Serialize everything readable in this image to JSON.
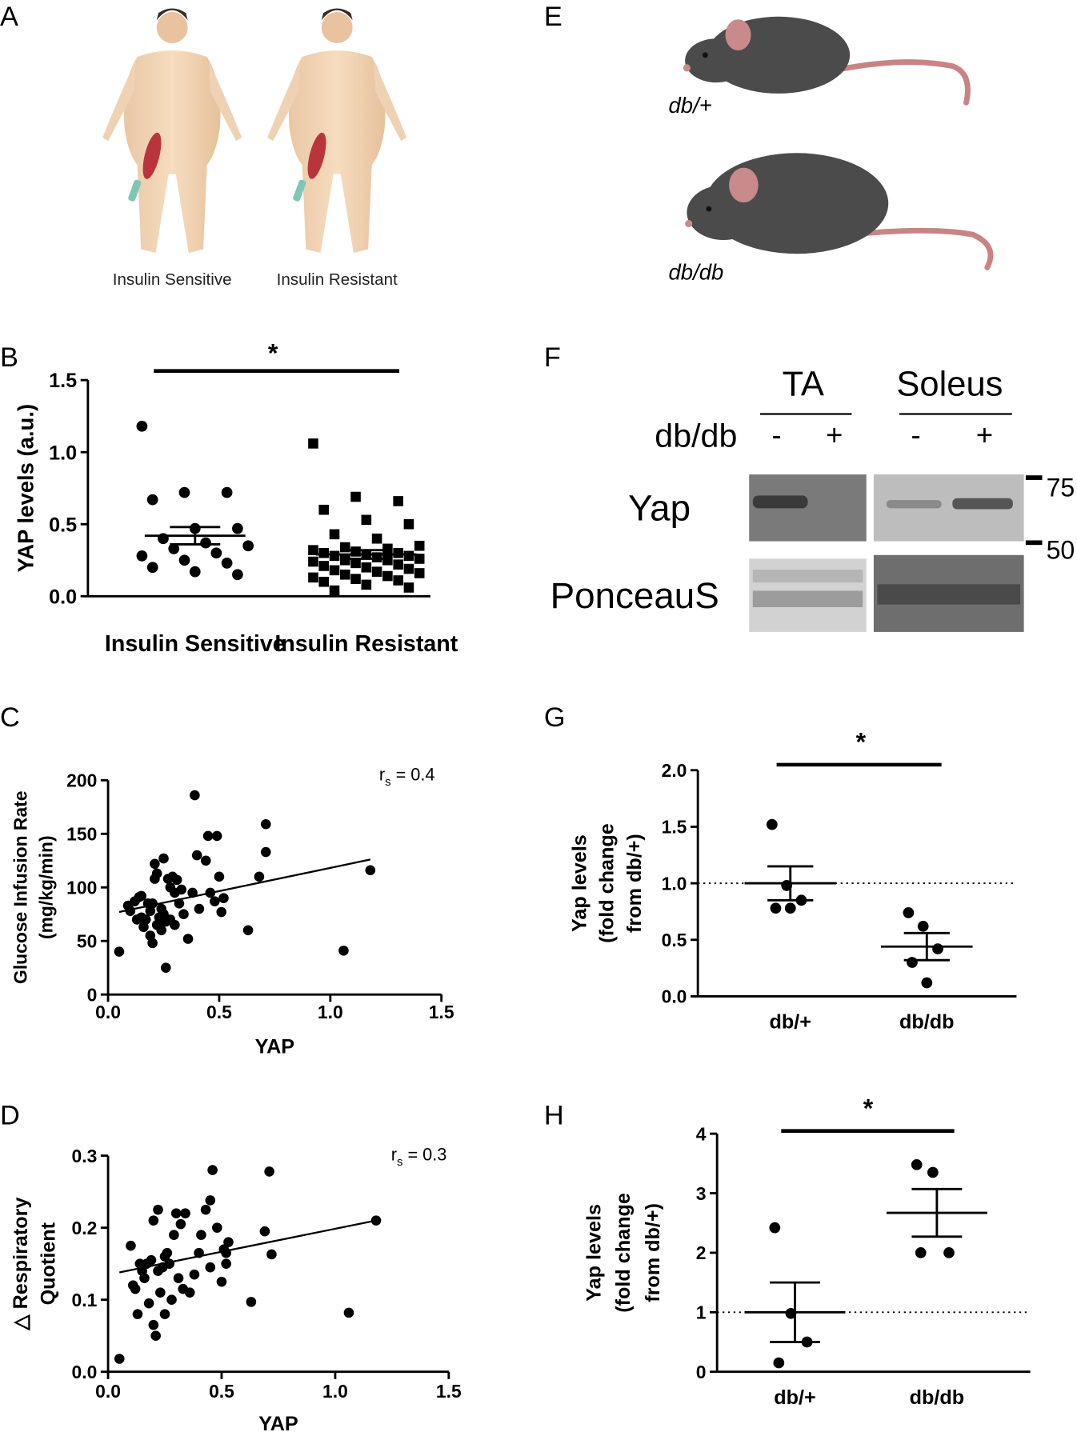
{
  "panel_labels": [
    "A",
    "B",
    "C",
    "D",
    "E",
    "F",
    "G",
    "H"
  ],
  "illustrations": {
    "A": {
      "labels": [
        "Insulin Sensitive",
        "Insulin Resistant"
      ]
    },
    "E": {
      "labels": [
        "db/+",
        "db/db"
      ]
    },
    "F": {
      "tissues": [
        "TA",
        "Soleus"
      ],
      "genotype_label": "db/db",
      "lanes": [
        "-",
        "+",
        "-",
        "+"
      ],
      "rows": [
        "Yap",
        "PonceauS"
      ],
      "markers": [
        75,
        50
      ]
    }
  },
  "chart_data": [
    {
      "type": "strip",
      "ylabel": [
        "YAP levels (a.u.)"
      ],
      "categories": [
        "Insulin Sensitive",
        "Insulin Resistant"
      ],
      "markers": [
        "circle",
        "square"
      ],
      "values": [
        [
          1.18,
          0.72,
          0.72,
          0.67,
          0.47,
          0.47,
          0.4,
          0.37,
          0.35,
          0.33,
          0.3,
          0.28,
          0.25,
          0.23,
          0.2,
          0.17,
          0.15
        ],
        [
          1.06,
          0.69,
          0.66,
          0.6,
          0.53,
          0.5,
          0.43,
          0.4,
          0.35,
          0.34,
          0.33,
          0.32,
          0.31,
          0.3,
          0.3,
          0.29,
          0.28,
          0.28,
          0.27,
          0.26,
          0.25,
          0.25,
          0.24,
          0.23,
          0.22,
          0.21,
          0.2,
          0.19,
          0.18,
          0.17,
          0.16,
          0.15,
          0.14,
          0.13,
          0.12,
          0.11,
          0.1,
          0.08,
          0.06,
          0.04
        ]
      ],
      "mean": [
        0.42,
        0.29
      ],
      "sem": [
        0.06,
        0.03
      ],
      "significance": "*",
      "ylim": [
        0,
        1.5
      ],
      "yticks": [
        {
          "value": 0,
          "label": "0.0"
        },
        {
          "value": 0.5,
          "label": "0.5"
        },
        {
          "value": 1,
          "label": "1.0"
        },
        {
          "value": 1.5,
          "label": "1.5"
        }
      ]
    },
    {
      "type": "scatter",
      "xlabel": "YAP",
      "ylabel": [
        "Glucose Infusion Rate",
        "(mg/kg/min)"
      ],
      "annotation": {
        "symbol": "r",
        "subscript": "s",
        "text": " = 0.4"
      },
      "x": [
        0.05,
        0.09,
        0.1,
        0.12,
        0.13,
        0.14,
        0.15,
        0.15,
        0.16,
        0.17,
        0.18,
        0.19,
        0.19,
        0.2,
        0.2,
        0.21,
        0.21,
        0.22,
        0.22,
        0.23,
        0.24,
        0.24,
        0.25,
        0.25,
        0.26,
        0.26,
        0.27,
        0.28,
        0.28,
        0.29,
        0.3,
        0.3,
        0.31,
        0.32,
        0.33,
        0.34,
        0.36,
        0.38,
        0.39,
        0.4,
        0.41,
        0.44,
        0.45,
        0.46,
        0.48,
        0.49,
        0.5,
        0.51,
        0.52,
        0.63,
        0.68,
        0.71,
        0.71,
        1.06,
        1.18
      ],
      "y": [
        40,
        83,
        78,
        87,
        70,
        91,
        92,
        72,
        63,
        70,
        85,
        55,
        78,
        85,
        48,
        108,
        122,
        113,
        65,
        72,
        80,
        60,
        127,
        75,
        25,
        68,
        108,
        100,
        70,
        110,
        95,
        65,
        107,
        85,
        98,
        75,
        52,
        95,
        186,
        130,
        80,
        125,
        148,
        95,
        87,
        148,
        110,
        77,
        90,
        60,
        110,
        133,
        159,
        41,
        116
      ],
      "fit_line": {
        "x": [
          0.05,
          1.18
        ],
        "y": [
          77,
          126
        ]
      },
      "xlim": [
        0,
        1.5
      ],
      "xticks": [
        {
          "value": 0,
          "label": "0.0"
        },
        {
          "value": 0.5,
          "label": "0.5"
        },
        {
          "value": 1,
          "label": "1.0"
        },
        {
          "value": 1.5,
          "label": "1.5"
        }
      ],
      "ylim": [
        0,
        200
      ],
      "yticks": [
        0,
        50,
        100,
        150,
        200
      ]
    },
    {
      "type": "scatter",
      "xlabel": "YAP",
      "ylabel": [
        "△ Respiratory",
        "Quotient"
      ],
      "annotation": {
        "symbol": "r",
        "subscript": "s",
        "text": " = 0.3"
      },
      "x": [
        0.05,
        0.1,
        0.11,
        0.12,
        0.13,
        0.14,
        0.15,
        0.16,
        0.17,
        0.18,
        0.19,
        0.2,
        0.2,
        0.21,
        0.22,
        0.22,
        0.23,
        0.24,
        0.25,
        0.25,
        0.26,
        0.27,
        0.28,
        0.29,
        0.3,
        0.31,
        0.32,
        0.33,
        0.34,
        0.36,
        0.38,
        0.4,
        0.41,
        0.43,
        0.45,
        0.45,
        0.46,
        0.48,
        0.5,
        0.51,
        0.52,
        0.52,
        0.53,
        0.63,
        0.69,
        0.71,
        0.72,
        1.06,
        1.18
      ],
      "y": [
        0.018,
        0.175,
        0.12,
        0.115,
        0.08,
        0.15,
        0.14,
        0.13,
        0.15,
        0.095,
        0.155,
        0.065,
        0.21,
        0.05,
        0.225,
        0.14,
        0.11,
        0.145,
        0.16,
        0.08,
        0.165,
        0.15,
        0.1,
        0.19,
        0.22,
        0.13,
        0.205,
        0.115,
        0.22,
        0.11,
        0.135,
        0.165,
        0.19,
        0.225,
        0.238,
        0.145,
        0.28,
        0.2,
        0.125,
        0.17,
        0.165,
        0.15,
        0.18,
        0.097,
        0.195,
        0.278,
        0.163,
        0.082,
        0.21
      ],
      "fit_line": {
        "x": [
          0.05,
          1.18
        ],
        "y": [
          0.138,
          0.21
        ]
      },
      "xlim": [
        0,
        1.5
      ],
      "xticks": [
        {
          "value": 0,
          "label": "0.0"
        },
        {
          "value": 0.5,
          "label": "0.5"
        },
        {
          "value": 1,
          "label": "1.0"
        },
        {
          "value": 1.5,
          "label": "1.5"
        }
      ],
      "ylim": [
        0,
        0.3
      ],
      "yticks": [
        {
          "value": 0,
          "label": "0.0"
        },
        0.1,
        0.2,
        0.3
      ]
    },
    {
      "type": "strip",
      "ylabel": [
        "Yap levels",
        "(fold change",
        "from db/+)"
      ],
      "categories": [
        "db/+",
        "db/db"
      ],
      "markers": [
        "circle",
        "circle"
      ],
      "values": [
        [
          1.52,
          0.98,
          0.85,
          0.78,
          0.78
        ],
        [
          0.74,
          0.62,
          0.42,
          0.3,
          0.12
        ]
      ],
      "mean": [
        1.0,
        0.44
      ],
      "sem": [
        0.15,
        0.12
      ],
      "reference_line": 1,
      "significance": "*",
      "ylim": [
        0,
        2
      ],
      "yticks": [
        {
          "value": 0,
          "label": "0.0"
        },
        {
          "value": 0.5,
          "label": "0.5"
        },
        {
          "value": 1,
          "label": "1.0"
        },
        1.5,
        {
          "value": 2,
          "label": "2.0"
        }
      ]
    },
    {
      "type": "strip",
      "ylabel": [
        "Yap levels",
        "(fold change",
        "from db/+)"
      ],
      "categories": [
        "db/+",
        "db/db"
      ],
      "markers": [
        "circle",
        "circle"
      ],
      "values": [
        [
          2.42,
          0.98,
          0.5,
          0.15
        ],
        [
          3.48,
          3.35,
          2.0,
          2.0
        ]
      ],
      "mean": [
        1.0,
        2.67
      ],
      "sem": [
        0.5,
        0.4
      ],
      "reference_line": 1,
      "significance": "*",
      "ylim": [
        0,
        4
      ],
      "yticks": [
        0,
        1,
        2,
        3,
        4
      ]
    }
  ]
}
